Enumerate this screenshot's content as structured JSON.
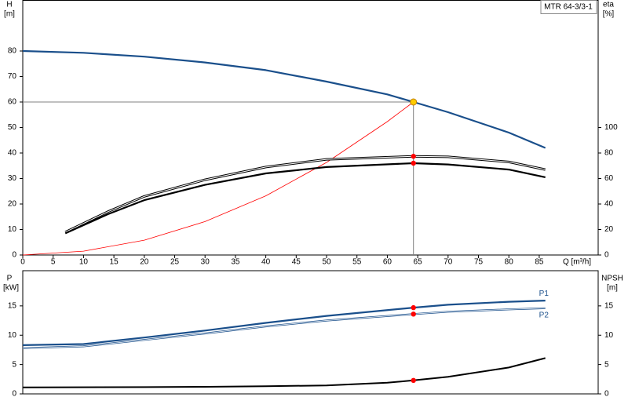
{
  "chart_data": [
    {
      "type": "line",
      "legend": "MTR 64-3/3-1",
      "y_label": "H",
      "y_unit": "[m]",
      "y2_label": "eta",
      "y2_unit": "[%]",
      "x_label": "Q [m³/h]",
      "xlim": [
        0,
        94.7
      ],
      "xticks": [
        0,
        5,
        10,
        15,
        20,
        25,
        30,
        35,
        40,
        45,
        50,
        55,
        60,
        65,
        70,
        75,
        80,
        85
      ],
      "ylim": [
        0,
        100
      ],
      "yticks": [
        0,
        10,
        20,
        30,
        40,
        50,
        60,
        70,
        80
      ],
      "y2lim": [
        0,
        200
      ],
      "y2ticks": [
        0,
        20,
        40,
        60,
        80,
        100
      ],
      "duty_point": {
        "x": 64.3,
        "y": 60,
        "color": "#ffcc00"
      },
      "series": [
        {
          "color": "#1a4f8b",
          "width": 2.2,
          "x": [
            0,
            10,
            20,
            30,
            40,
            50,
            60,
            64.3,
            70,
            80,
            86
          ],
          "values": [
            80,
            79.3,
            77.8,
            75.5,
            72.5,
            68,
            63,
            60,
            56,
            48,
            42
          ]
        },
        {
          "color": "#ff0000",
          "width": 0.8,
          "x": [
            0,
            10,
            20,
            30,
            40,
            50,
            60,
            64.3
          ],
          "values": [
            0,
            1.5,
            5.8,
            13.1,
            23.2,
            36.3,
            52.3,
            60
          ]
        },
        {
          "color": "#000000",
          "width": 3,
          "style": "double",
          "axis": "y2",
          "x": [
            7,
            14,
            20,
            30,
            40,
            50,
            64.3,
            70,
            80,
            86
          ],
          "values": [
            18,
            34,
            46,
            59,
            69,
            75,
            77.4,
            77,
            73,
            67
          ]
        },
        {
          "color": "#000000",
          "width": 2.2,
          "axis": "y2",
          "x": [
            7,
            14,
            20,
            30,
            40,
            50,
            64.3,
            70,
            80,
            86
          ],
          "values": [
            17,
            32,
            43,
            55,
            64,
            69,
            72,
            71,
            67,
            61
          ]
        },
        {
          "color": "#ff0000",
          "style": "dots",
          "axis": "y2",
          "x": [
            64.3,
            64.3
          ],
          "values": [
            77.4,
            72
          ]
        }
      ]
    },
    {
      "type": "line",
      "y_label": "P",
      "y_unit": "[kW]",
      "y2_label": "NPSH",
      "y2_unit": "[m]",
      "xlim": [
        0,
        94.7
      ],
      "ylim": [
        0,
        21
      ],
      "yticks": [
        0,
        5,
        10,
        15
      ],
      "y2lim": [
        0,
        21
      ],
      "y2ticks": [
        0,
        5,
        10,
        15
      ],
      "series": [
        {
          "name": "P1",
          "color": "#1a4f8b",
          "width": 2.2,
          "x": [
            0,
            10,
            20,
            30,
            40,
            50,
            64.3,
            70,
            80,
            86
          ],
          "values": [
            8.3,
            8.5,
            9.6,
            10.8,
            12.1,
            13.3,
            14.7,
            15.2,
            15.7,
            15.9
          ]
        },
        {
          "name": "P2",
          "color": "#1a4f8b",
          "width": 2.2,
          "style": "double",
          "x": [
            0,
            10,
            20,
            30,
            40,
            50,
            64.3,
            70,
            80,
            86
          ],
          "values": [
            7.8,
            8.1,
            9.2,
            10.3,
            11.5,
            12.5,
            13.6,
            14.0,
            14.4,
            14.6
          ]
        },
        {
          "color": "#000000",
          "width": 2,
          "axis": "y2",
          "x": [
            0,
            20,
            30,
            40,
            50,
            60,
            64.3,
            70,
            80,
            86
          ],
          "values": [
            1.1,
            1.15,
            1.2,
            1.3,
            1.45,
            1.9,
            2.3,
            2.9,
            4.5,
            6.1
          ]
        },
        {
          "color": "#ff0000",
          "style": "dots",
          "x": [
            64.3,
            64.3
          ],
          "values": [
            14.7,
            13.6
          ]
        },
        {
          "color": "#ff0000",
          "style": "dots",
          "axis": "y2",
          "x": [
            64.3
          ],
          "values": [
            2.3
          ]
        }
      ]
    }
  ]
}
